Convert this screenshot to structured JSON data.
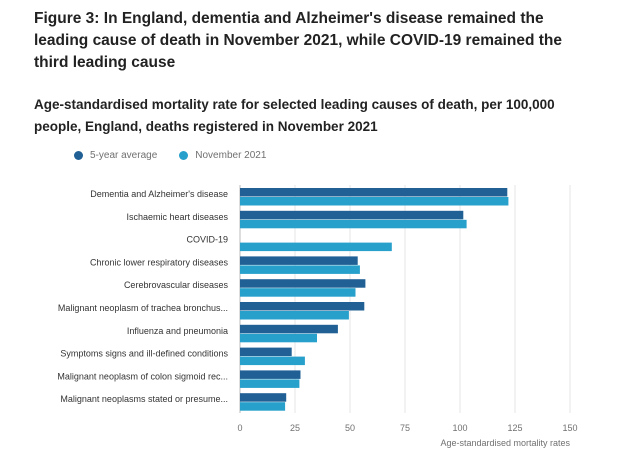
{
  "title": "Figure 3: In England, dementia and Alzheimer's disease remained the leading cause of death in November 2021, while COVID-19 remained the third leading cause",
  "subtitle": "Age-standardised mortality rate for selected leading causes of death, per 100,000 people, England, deaths registered in November 2021",
  "chart_data": {
    "type": "bar",
    "orientation": "horizontal",
    "title": "",
    "xlabel": "Age-standardised mortality rates",
    "ylabel": "",
    "xlim": [
      0,
      150
    ],
    "xticks": [
      0,
      25,
      50,
      75,
      100,
      125,
      150
    ],
    "grid": true,
    "legend_position": "top-left",
    "categories": [
      "Dementia and Alzheimer's disease",
      "Ischaemic heart diseases",
      "COVID-19",
      "Chronic lower respiratory diseases",
      "Cerebrovascular diseases",
      "Malignant neoplasm of trachea bronchus...",
      "Influenza and pneumonia",
      "Symptoms signs and ill-defined conditions",
      "Malignant neoplasm of colon sigmoid rec...",
      "Malignant neoplasms stated or presume..."
    ],
    "series": [
      {
        "name": "5-year average",
        "color": "#206095",
        "values": [
          121.5,
          101.5,
          null,
          53.5,
          57,
          56.5,
          44.5,
          23.5,
          27.5,
          21
        ]
      },
      {
        "name": "November 2021",
        "color": "#27a0cc",
        "values": [
          122,
          103,
          69,
          54.5,
          52.5,
          49.5,
          35,
          29.5,
          27,
          20.5
        ]
      }
    ]
  }
}
